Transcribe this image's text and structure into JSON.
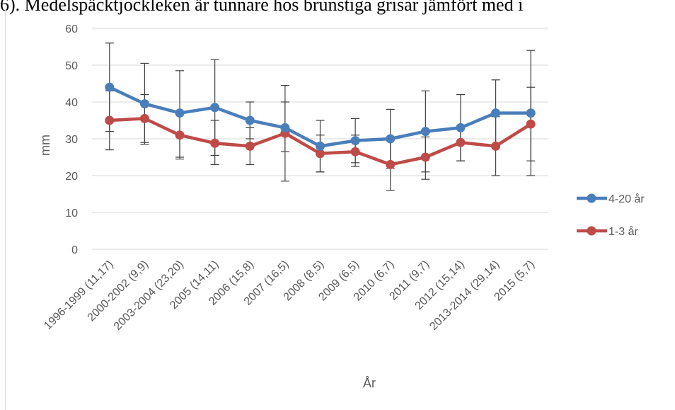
{
  "page": {
    "caption_fragment": "6). Medelspäcktjockleken är tunnare hos brunstiga grisar jämfört med i"
  },
  "chart_data": {
    "type": "line",
    "title": "",
    "xlabel": "År",
    "ylabel": "mm",
    "ylim": [
      0,
      60
    ],
    "yticks": [
      0,
      10,
      20,
      30,
      40,
      50,
      60
    ],
    "grid": true,
    "legend_position": "right",
    "categories": [
      "1996-1999 (11,17)",
      "2000-2002 (9,9)",
      "2003-2004 (23,20)",
      "2005 (14,11)",
      "2006 (15,8)",
      "2007 (16,5)",
      "2008 (8,5)",
      "2009 (6,5)",
      "2010 (6,7)",
      "2011 (9,7)",
      "2012 (15,14)",
      "2013-2014 (29,14)",
      "2015 (5,7)"
    ],
    "series": [
      {
        "name": "4-20 år",
        "color": "#4a7ebb",
        "values": [
          44,
          39.5,
          37,
          38.5,
          35,
          33,
          28,
          29.5,
          30,
          32,
          33,
          37,
          37
        ],
        "error_low": [
          32,
          29,
          25,
          25.5,
          30,
          26.5,
          21,
          23.5,
          22,
          21,
          24,
          28,
          20
        ],
        "error_high": [
          56,
          50.5,
          48.5,
          51.5,
          40,
          44.5,
          35,
          35.5,
          38,
          43,
          42,
          46,
          54
        ]
      },
      {
        "name": "1-3 år",
        "color": "#be4b48",
        "values": [
          35,
          35.5,
          31,
          28.8,
          28,
          31.5,
          26,
          26.5,
          23,
          25,
          29,
          28,
          34
        ],
        "error_low": [
          27,
          28.5,
          24.5,
          23,
          23,
          18.5,
          21,
          22.5,
          16,
          19,
          24,
          20,
          24
        ],
        "error_high": [
          43,
          42,
          36.5,
          35,
          33,
          40,
          31,
          31,
          30,
          30.5,
          33.5,
          36,
          44
        ]
      }
    ]
  }
}
